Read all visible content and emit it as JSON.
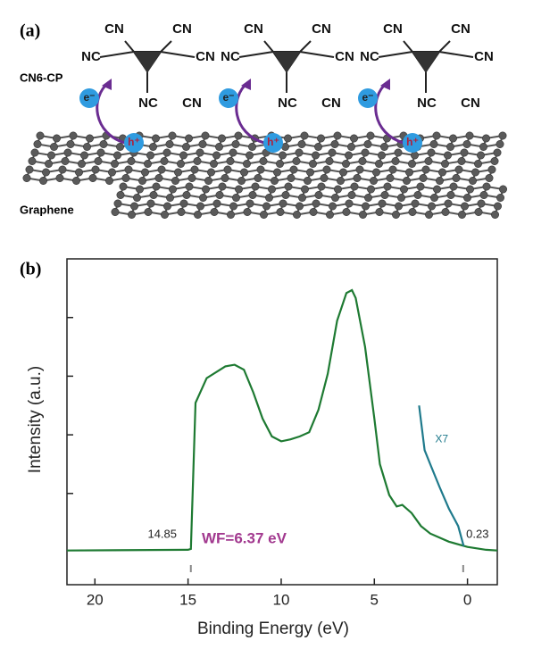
{
  "panel_a": {
    "label": "(a)",
    "molecule": "CN6-CP",
    "substrate": "Graphene",
    "molecules": [
      {
        "groups": [
          "CN",
          "CN",
          "NC",
          "CN",
          "NC",
          "CN"
        ],
        "electron": "e⁻",
        "hole": "h⁺"
      },
      {
        "groups": [
          "CN",
          "CN",
          "NC",
          "CN",
          "NC",
          "CN"
        ],
        "electron": "e⁻",
        "hole": "h⁺"
      },
      {
        "groups": [
          "CN",
          "CN",
          "NC",
          "CN",
          "NC",
          "CN"
        ],
        "electron": "e⁻",
        "hole": "h⁺"
      }
    ]
  },
  "chart_data": {
    "type": "line",
    "panel_label": "(b)",
    "x_label": "Binding Energy (eV)",
    "y_label": "Intensity (a.u.)",
    "xlim": [
      21.5,
      -1.6
    ],
    "xticks": [
      20,
      15,
      10,
      5,
      0
    ],
    "ylim": [
      0,
      100
    ],
    "yticks": [
      28,
      46,
      64,
      82
    ],
    "series": [
      {
        "color": "#1e7a32",
        "x": [
          21.5,
          15,
          14.85,
          14.6,
          14,
          13,
          12.5,
          12,
          11.5,
          11,
          10.5,
          10,
          9.5,
          9,
          8.5,
          8,
          7.5,
          7,
          6.5,
          6.2,
          6,
          5.5,
          5,
          4.7,
          4.2,
          3.8,
          3.5,
          3,
          2.5,
          2,
          1,
          0,
          -1,
          -1.6
        ],
        "values": [
          10.5,
          10.7,
          11,
          55.8,
          63.4,
          67,
          67.5,
          66,
          59,
          51,
          45.5,
          44,
          44.6,
          45.5,
          46.8,
          53.7,
          64.7,
          81,
          89.5,
          90.4,
          88,
          73,
          51,
          37,
          27.5,
          24,
          24.5,
          22,
          18,
          15.7,
          13.2,
          11.6,
          10.7,
          10.5
        ]
      },
      {
        "name": "X7",
        "color": "#1f7a8c",
        "x": [
          2.6,
          2.3,
          2,
          1.5,
          1,
          0.5,
          0.2
        ],
        "values": [
          55,
          41.3,
          37,
          30,
          23.4,
          18,
          11.8
        ]
      }
    ],
    "markers": [
      {
        "value": 14.85,
        "label": "14.85"
      },
      {
        "value": 0.23,
        "label": "0.23"
      }
    ],
    "annotation": "WF=6.37 eV",
    "annotation_color": "#a2398f"
  }
}
